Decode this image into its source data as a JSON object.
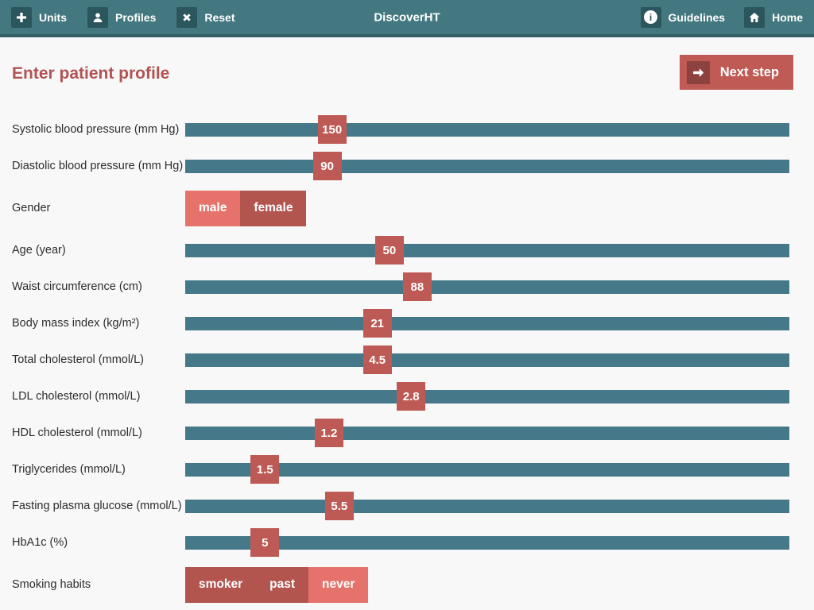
{
  "topbar": {
    "title": "DiscoverHT",
    "left_items": [
      {
        "label": "Units",
        "icon": "plus-icon"
      },
      {
        "label": "Profiles",
        "icon": "person-icon"
      },
      {
        "label": "Reset",
        "icon": "x-icon"
      }
    ],
    "right_items": [
      {
        "label": "Guidelines",
        "icon": "info-icon"
      },
      {
        "label": "Home",
        "icon": "home-icon"
      }
    ]
  },
  "page": {
    "title": "Enter patient profile",
    "next_step_label": "Next step"
  },
  "colors": {
    "topbar_bg": "#447880",
    "topbar_border": "#32616a",
    "icon_box_bg": "#2b565d",
    "track_teal": "#45798a",
    "handle_red": "#bd5a55",
    "option_selected": "#e5736b",
    "option_unselected": "#b2554f",
    "heading_red": "#b25353",
    "next_btn_red": "#c05a54",
    "page_bg": "#f8f8f8"
  },
  "rows": [
    {
      "type": "slider",
      "label": "Systolic blood pressure (mm Hg)",
      "value": "150",
      "pos_pct": 24.3
    },
    {
      "type": "slider",
      "label": "Diastolic blood pressure (mm Hg)",
      "value": "90",
      "pos_pct": 23.5
    },
    {
      "type": "toggle",
      "label": "Gender",
      "options": [
        {
          "label": "male",
          "selected": true
        },
        {
          "label": "female",
          "selected": false
        }
      ]
    },
    {
      "type": "slider",
      "label": "Age (year)",
      "value": "50",
      "pos_pct": 33.8
    },
    {
      "type": "slider",
      "label": "Waist circumference (cm)",
      "value": "88",
      "pos_pct": 38.4
    },
    {
      "type": "slider",
      "label": "Body mass index (kg/m²)",
      "value": "21",
      "pos_pct": 31.8
    },
    {
      "type": "slider",
      "label": "Total cholesterol (mmol/L)",
      "value": "4.5",
      "pos_pct": 31.8
    },
    {
      "type": "slider",
      "label": "LDL cholesterol (mmol/L)",
      "value": "2.8",
      "pos_pct": 37.4
    },
    {
      "type": "slider",
      "label": "HDL cholesterol (mmol/L)",
      "value": "1.2",
      "pos_pct": 23.8
    },
    {
      "type": "slider",
      "label": "Triglycerides (mmol/L)",
      "value": "1.5",
      "pos_pct": 13.2
    },
    {
      "type": "slider",
      "label": "Fasting plasma glucose (mmol/L)",
      "value": "5.5",
      "pos_pct": 25.5
    },
    {
      "type": "slider",
      "label": "HbA1c (%)",
      "value": "5",
      "pos_pct": 13.2
    },
    {
      "type": "toggle",
      "label": "Smoking habits",
      "options": [
        {
          "label": "smoker",
          "selected": false
        },
        {
          "label": "past",
          "selected": false
        },
        {
          "label": "never",
          "selected": true
        }
      ]
    }
  ]
}
